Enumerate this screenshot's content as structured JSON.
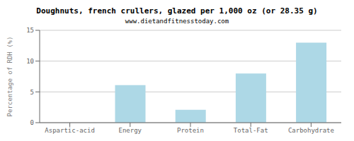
{
  "chart_data": {
    "type": "bar",
    "title": "Doughnuts, french crullers, glazed per 1,000 oz (or 28.35 g)",
    "subtitle": "www.dietandfitnesstoday.com",
    "categories": [
      "Aspartic-acid",
      "Energy",
      "Protein",
      "Total-Fat",
      "Carbohydrate"
    ],
    "values": [
      0,
      6.1,
      2.1,
      8.0,
      13.0
    ],
    "color": "#add8e6",
    "ylabel": "Percentage of RDH (%)",
    "ylim": [
      0,
      15
    ],
    "yticks": [
      0,
      5,
      10,
      15
    ],
    "grid": true
  }
}
